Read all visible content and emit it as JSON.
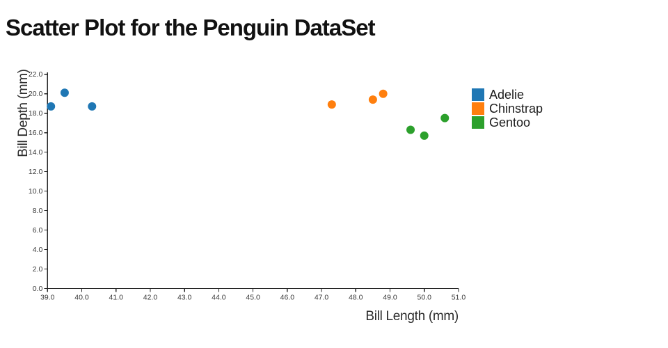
{
  "chart_data": {
    "type": "scatter",
    "title": "Scatter Plot for the Penguin DataSet",
    "xlabel": "Bill Length (mm)",
    "ylabel": "Bill Depth (mm)",
    "xlim": [
      39.0,
      51.0
    ],
    "ylim": [
      0.0,
      22.0
    ],
    "xticks": [
      39.0,
      40.0,
      41.0,
      42.0,
      43.0,
      44.0,
      45.0,
      46.0,
      47.0,
      48.0,
      49.0,
      50.0,
      51.0
    ],
    "yticks": [
      0.0,
      2.0,
      4.0,
      6.0,
      8.0,
      10.0,
      12.0,
      14.0,
      16.0,
      18.0,
      20.0,
      22.0
    ],
    "tick_label_format": "one-decimal",
    "grid": false,
    "legend_position": "right",
    "marker": {
      "shape": "circle",
      "radius_px": 6
    },
    "series": [
      {
        "name": "Adelie",
        "color": "#1f77b4",
        "points": [
          [
            39.1,
            18.7
          ],
          [
            39.5,
            20.1
          ],
          [
            40.3,
            18.7
          ]
        ]
      },
      {
        "name": "Chinstrap",
        "color": "#ff7f0e",
        "points": [
          [
            47.3,
            18.9
          ],
          [
            48.5,
            19.4
          ],
          [
            48.8,
            20.0
          ]
        ]
      },
      {
        "name": "Gentoo",
        "color": "#2ca02c",
        "points": [
          [
            49.6,
            16.3
          ],
          [
            50.0,
            15.7
          ],
          [
            50.6,
            17.5
          ]
        ]
      }
    ]
  }
}
